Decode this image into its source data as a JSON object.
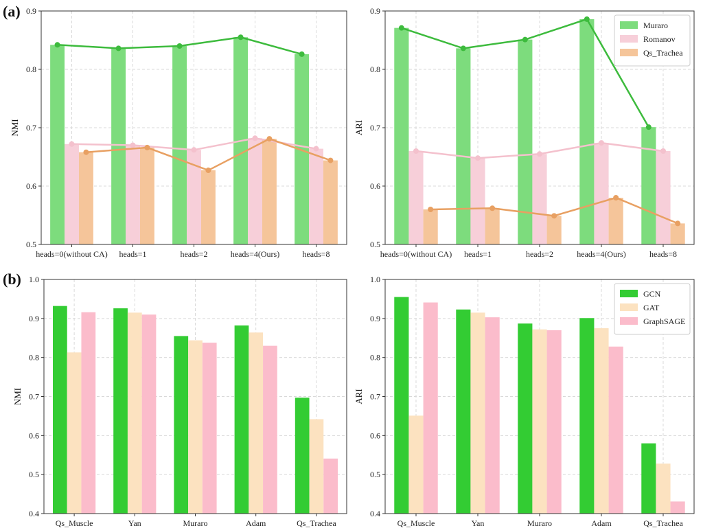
{
  "panel_labels": [
    "(a)",
    "(b)"
  ],
  "colors": {
    "Muraro": "#7ddc7d",
    "Romanov": "#f7cfd9",
    "Qs_Trachea": "#f5c59a",
    "GCN": "#33cc33",
    "GAT": "#fce2c0",
    "GraphSAGE": "#fbbccb",
    "Muraro_line": "#3dbb3d",
    "Romanov_line": "#f4c1cd",
    "Qs_Trachea_line": "#e8a062"
  },
  "chart_data": [
    {
      "type": "bar",
      "panel": "(a)",
      "ylabel": "NMI",
      "ylim": [
        0.5,
        0.9
      ],
      "yticks": [
        "0.5",
        "0.6",
        "0.7",
        "0.8",
        "0.9"
      ],
      "grid": true,
      "categories": [
        "heads=0(without CA)",
        "heads=1",
        "heads=2",
        "heads=4(Ours)",
        "heads=8"
      ],
      "series": [
        {
          "key": "Muraro",
          "values": [
            0.842,
            0.836,
            0.84,
            0.855,
            0.826
          ]
        },
        {
          "key": "Romanov",
          "values": [
            0.672,
            0.67,
            0.662,
            0.682,
            0.664
          ]
        },
        {
          "key": "Qs_Trachea",
          "values": [
            0.658,
            0.666,
            0.627,
            0.681,
            0.644
          ]
        }
      ],
      "overlay_lines": true,
      "legend": null
    },
    {
      "type": "bar",
      "panel": "",
      "ylabel": "ARI",
      "ylim": [
        0.5,
        0.9
      ],
      "yticks": [
        "0.5",
        "0.6",
        "0.7",
        "0.8",
        "0.9"
      ],
      "grid": true,
      "categories": [
        "heads=0(without CA)",
        "heads=1",
        "heads=2",
        "heads=4(Ours)",
        "heads=8"
      ],
      "series": [
        {
          "key": "Muraro",
          "name": "Muraro",
          "values": [
            0.871,
            0.836,
            0.851,
            0.886,
            0.701
          ]
        },
        {
          "key": "Romanov",
          "name": "Romanov",
          "values": [
            0.66,
            0.648,
            0.655,
            0.674,
            0.66
          ]
        },
        {
          "key": "Qs_Trachea",
          "name": "Qs_Trachea",
          "values": [
            0.56,
            0.562,
            0.549,
            0.58,
            0.536
          ]
        }
      ],
      "overlay_lines": true,
      "legend": "top-right"
    },
    {
      "type": "bar",
      "panel": "(b)",
      "ylabel": "NMI",
      "ylim": [
        0.4,
        1.0
      ],
      "yticks": [
        "0.4",
        "0.5",
        "0.6",
        "0.7",
        "0.8",
        "0.9",
        "1.0"
      ],
      "grid": true,
      "categories": [
        "Qs_Muscle",
        "Yan",
        "Muraro",
        "Adam",
        "Qs_Trachea"
      ],
      "series": [
        {
          "key": "GCN",
          "values": [
            0.932,
            0.926,
            0.855,
            0.882,
            0.697
          ]
        },
        {
          "key": "GAT",
          "values": [
            0.813,
            0.915,
            0.844,
            0.864,
            0.642
          ]
        },
        {
          "key": "GraphSAGE",
          "values": [
            0.916,
            0.91,
            0.838,
            0.83,
            0.541
          ]
        }
      ],
      "overlay_lines": false,
      "legend": null
    },
    {
      "type": "bar",
      "panel": "",
      "ylabel": "ARI",
      "ylim": [
        0.4,
        1.0
      ],
      "yticks": [
        "0.4",
        "0.5",
        "0.6",
        "0.7",
        "0.8",
        "0.9",
        "1.0"
      ],
      "grid": true,
      "categories": [
        "Qs_Muscle",
        "Yan",
        "Muraro",
        "Adam",
        "Qs_Trachea"
      ],
      "series": [
        {
          "key": "GCN",
          "name": "GCN",
          "values": [
            0.955,
            0.923,
            0.887,
            0.901,
            0.58
          ]
        },
        {
          "key": "GAT",
          "name": "GAT",
          "values": [
            0.651,
            0.915,
            0.872,
            0.875,
            0.528
          ]
        },
        {
          "key": "GraphSAGE",
          "name": "GraphSAGE",
          "values": [
            0.941,
            0.903,
            0.87,
            0.828,
            0.431
          ]
        }
      ],
      "overlay_lines": false,
      "legend": "top-right"
    }
  ]
}
